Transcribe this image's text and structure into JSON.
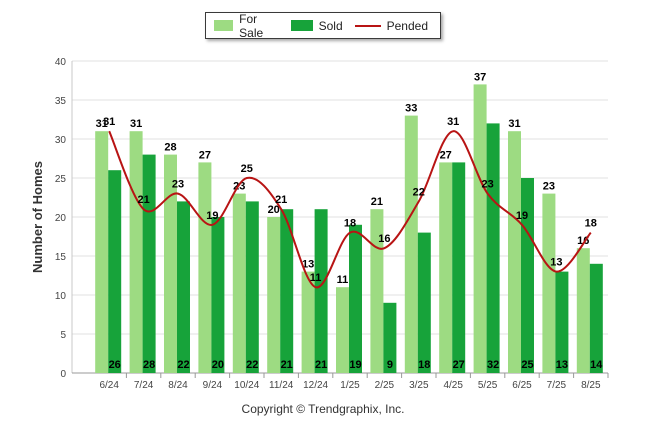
{
  "chart_data": {
    "type": "bar",
    "title": "",
    "xlabel": "",
    "ylabel": "Number of Homes",
    "ylim": [
      0,
      40
    ],
    "yticks": [
      0,
      5,
      10,
      15,
      20,
      25,
      30,
      35,
      40
    ],
    "grid": true,
    "legend_position": "top",
    "categories": [
      "6/24",
      "7/24",
      "8/24",
      "9/24",
      "10/24",
      "11/24",
      "12/24",
      "1/25",
      "2/25",
      "3/25",
      "4/25",
      "5/25",
      "6/25",
      "7/25",
      "8/25"
    ],
    "series": [
      {
        "name": "For Sale",
        "kind": "bar",
        "color": "#9ddb82",
        "values": [
          31,
          31,
          28,
          27,
          23,
          20,
          13,
          11,
          21,
          33,
          27,
          37,
          31,
          23,
          16
        ]
      },
      {
        "name": "Sold",
        "kind": "bar",
        "color": "#17a33a",
        "values": [
          26,
          28,
          22,
          20,
          22,
          21,
          21,
          19,
          9,
          18,
          27,
          32,
          25,
          13,
          14
        ]
      },
      {
        "name": "Pended",
        "kind": "line",
        "color": "#b81414",
        "values": [
          31,
          21,
          23,
          19,
          25,
          21,
          11,
          18,
          16,
          22,
          31,
          23,
          19,
          13,
          18
        ]
      }
    ]
  },
  "credit": "Copyright © Trendgraphix, Inc."
}
